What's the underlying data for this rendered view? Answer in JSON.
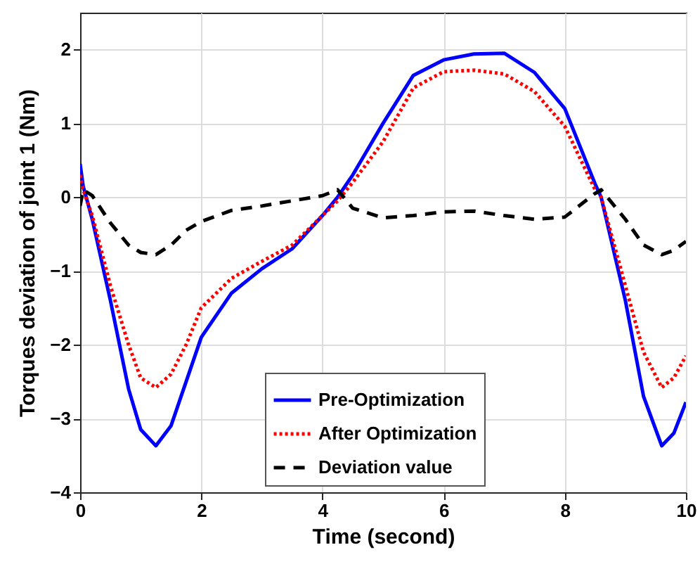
{
  "chart_data": {
    "type": "line",
    "xlabel": "Time (second)",
    "ylabel": "Torques deviation of joint 1 (Nm)",
    "x": [
      0,
      0.05,
      0.2,
      0.5,
      0.8,
      1.0,
      1.25,
      1.5,
      1.75,
      2.0,
      2.5,
      3.0,
      3.5,
      4.0,
      4.25,
      4.5,
      5.0,
      5.5,
      6.0,
      6.5,
      7.0,
      7.5,
      8.0,
      8.5,
      8.6,
      9.0,
      9.3,
      9.6,
      9.8,
      10
    ],
    "series": [
      {
        "name": "Pre-Optimization",
        "color": "#0000ff",
        "line_style": "solid",
        "values": [
          0.45,
          0.15,
          -0.3,
          -1.4,
          -2.6,
          -3.15,
          -3.37,
          -3.1,
          -2.5,
          -1.9,
          -1.3,
          -0.97,
          -0.7,
          -0.25,
          0.0,
          0.3,
          1.0,
          1.65,
          1.86,
          1.94,
          1.95,
          1.69,
          1.2,
          0.18,
          0.0,
          -1.4,
          -2.7,
          -3.37,
          -3.2,
          -2.78
        ]
      },
      {
        "name": "After Optimization",
        "color": "#ff0000",
        "line_style": "dotted",
        "values": [
          0.3,
          0.1,
          -0.25,
          -1.2,
          -2.0,
          -2.45,
          -2.58,
          -2.4,
          -2.0,
          -1.5,
          -1.1,
          -0.87,
          -0.65,
          -0.25,
          -0.05,
          0.2,
          0.75,
          1.48,
          1.7,
          1.72,
          1.67,
          1.43,
          0.96,
          0.1,
          0.0,
          -1.2,
          -2.1,
          -2.58,
          -2.45,
          -2.15
        ]
      },
      {
        "name": "Deviation value",
        "color": "#000000",
        "line_style": "dashed",
        "values": [
          -0.12,
          0.1,
          0.02,
          -0.35,
          -0.65,
          -0.75,
          -0.78,
          -0.65,
          -0.45,
          -0.33,
          -0.18,
          -0.12,
          -0.05,
          0.02,
          0.1,
          -0.15,
          -0.28,
          -0.25,
          -0.2,
          -0.19,
          -0.25,
          -0.3,
          -0.27,
          0.05,
          0.1,
          -0.3,
          -0.65,
          -0.78,
          -0.72,
          -0.6
        ]
      }
    ],
    "xlim": [
      0,
      10
    ],
    "xticks": [
      0,
      2,
      4,
      6,
      8,
      10
    ],
    "ylim": [
      -4,
      2.5
    ],
    "yticks": [
      -4,
      -3,
      -2,
      -1,
      0,
      1,
      2
    ],
    "grid": true,
    "legend": "bottom"
  }
}
